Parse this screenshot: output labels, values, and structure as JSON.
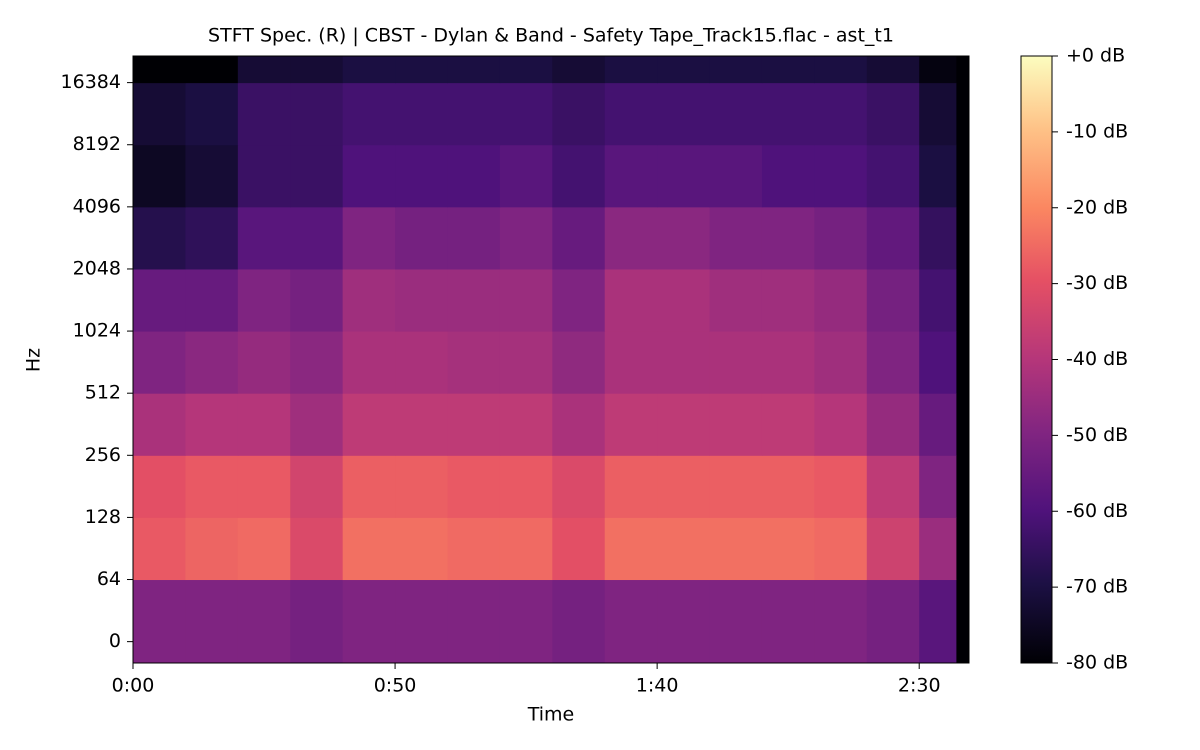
{
  "chart_data": {
    "type": "spectrogram",
    "title": "STFT Spec. (R) | CBST - Dylan & Band - Safety Tape_Track15.flac - ast_t1",
    "x_label": "Time",
    "y_label": "Hz",
    "xlim": [
      0,
      159.5
    ],
    "xticks": [
      {
        "value": 0,
        "label": "0:00"
      },
      {
        "value": 50,
        "label": "0:50"
      },
      {
        "value": 100,
        "label": "1:40"
      },
      {
        "value": 150,
        "label": "2:30"
      }
    ],
    "ylim": [
      -22,
      22050
    ],
    "yticks": [
      0,
      64,
      128,
      256,
      512,
      1024,
      2048,
      4096,
      8192,
      16384
    ],
    "time_edges": [
      0,
      10,
      20,
      30,
      40,
      50,
      60,
      70,
      80,
      90,
      100,
      110,
      120,
      130,
      140,
      150,
      157
    ],
    "freq_edges": [
      -22,
      64,
      128,
      256,
      512,
      1024,
      2048,
      4096,
      8192,
      16384,
      22050
    ],
    "values": [
      [
        -50,
        -50,
        -50,
        -52,
        -50,
        -50,
        -50,
        -50,
        -52,
        -50,
        -50,
        -50,
        -50,
        -50,
        -52,
        -58
      ],
      [
        -28,
        -26,
        -25,
        -32,
        -24,
        -24,
        -25,
        -25,
        -30,
        -24,
        -24,
        -24,
        -24,
        -25,
        -35,
        -45
      ],
      [
        -30,
        -28,
        -28,
        -34,
        -27,
        -27,
        -28,
        -28,
        -32,
        -27,
        -27,
        -27,
        -27,
        -28,
        -38,
        -50
      ],
      [
        -42,
        -40,
        -40,
        -44,
        -38,
        -38,
        -38,
        -38,
        -42,
        -38,
        -38,
        -38,
        -38,
        -40,
        -46,
        -55
      ],
      [
        -50,
        -48,
        -46,
        -48,
        -42,
        -42,
        -43,
        -43,
        -47,
        -42,
        -42,
        -42,
        -42,
        -44,
        -50,
        -60
      ],
      [
        -55,
        -55,
        -50,
        -52,
        -44,
        -45,
        -45,
        -45,
        -50,
        -42,
        -42,
        -44,
        -44,
        -46,
        -52,
        -62
      ],
      [
        -68,
        -66,
        -58,
        -58,
        -50,
        -52,
        -52,
        -50,
        -55,
        -48,
        -48,
        -50,
        -50,
        -52,
        -56,
        -65
      ],
      [
        -75,
        -72,
        -64,
        -64,
        -60,
        -60,
        -60,
        -58,
        -62,
        -58,
        -58,
        -58,
        -60,
        -60,
        -62,
        -70
      ],
      [
        -72,
        -70,
        -64,
        -64,
        -62,
        -62,
        -62,
        -62,
        -64,
        -62,
        -62,
        -62,
        -62,
        -62,
        -64,
        -72
      ],
      [
        -80,
        -80,
        -72,
        -72,
        -70,
        -70,
        -70,
        -70,
        -72,
        -70,
        -70,
        -70,
        -70,
        -70,
        -72,
        -78
      ]
    ],
    "colormap": "magma",
    "clim": [
      -80,
      0
    ],
    "cticks": [
      {
        "value": 0,
        "label": "+0 dB"
      },
      {
        "value": -10,
        "label": "-10 dB"
      },
      {
        "value": -20,
        "label": "-20 dB"
      },
      {
        "value": -30,
        "label": "-30 dB"
      },
      {
        "value": -40,
        "label": "-40 dB"
      },
      {
        "value": -50,
        "label": "-50 dB"
      },
      {
        "value": -60,
        "label": "-60 dB"
      },
      {
        "value": -70,
        "label": "-70 dB"
      },
      {
        "value": -80,
        "label": "-80 dB"
      }
    ]
  }
}
